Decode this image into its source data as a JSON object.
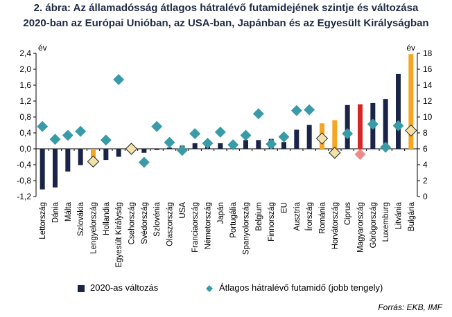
{
  "title_line1": "2. ábra: Az államadósság átlagos hátralévő futamidejének szintje és változása",
  "title_line2": "2020-ban az Európai Unióban, az USA-ban, Japánban és az Egyesült Királyságban",
  "source": "Forrás: EKB, IMF",
  "colors": {
    "bar_default": "#1a2448",
    "bar_highlight": "#f5a623",
    "bar_hungary": "#d62728",
    "diamond_default": "#3a9ba8",
    "diamond_highlight": "#f2e2a8",
    "diamond_hungary": "#ef8a8a"
  },
  "legend": {
    "bars_label": "2020-as változás",
    "diamonds_label": "Átlagos hátralévő futamidő (jobb tengely)"
  },
  "chart_data": {
    "type": "bar",
    "left_axis": {
      "unit": "év",
      "min": -1.2,
      "max": 2.4,
      "ticks": [
        "-1,2",
        "-0,8",
        "-0,4",
        "0,0",
        "0,4",
        "0,8",
        "1,2",
        "1,6",
        "2,0",
        "2,4"
      ]
    },
    "right_axis": {
      "unit": "év",
      "min": 0,
      "max": 18,
      "ticks": [
        "0",
        "2",
        "4",
        "6",
        "8",
        "10",
        "12",
        "14",
        "16",
        "18"
      ]
    },
    "grid": false,
    "legend_position": "bottom",
    "categories": [
      "Lettország",
      "Dánia",
      "Málta",
      "Szlovákia",
      "Lengyelország",
      "Hollandia",
      "Egyesült Királyság",
      "Csehország",
      "Svédország",
      "Szlovénia",
      "Olaszország",
      "USA",
      "Franciaország",
      "Németország",
      "Japán",
      "Portugália",
      "Spanyolország",
      "Belgium",
      "Finnország",
      "EU",
      "Ausztria",
      "Írország",
      "Románia",
      "Horvátország",
      "Ciprus",
      "Magyarország",
      "Görögország",
      "Luxemburg",
      "Litvánia",
      "Bulgária"
    ],
    "series": [
      {
        "name": "2020-as változás",
        "axis": "left",
        "values": [
          -1.02,
          -0.97,
          -0.57,
          -0.41,
          -0.28,
          -0.28,
          -0.2,
          -0.02,
          -0.1,
          -0.03,
          0.03,
          0.08,
          0.14,
          0.12,
          0.14,
          0.03,
          0.22,
          0.22,
          0.25,
          0.17,
          0.48,
          0.6,
          0.64,
          0.72,
          1.1,
          1.12,
          1.15,
          1.25,
          1.88,
          2.38
        ]
      },
      {
        "name": "Átlagos hátralévő futamidő (jobb tengely)",
        "axis": "right",
        "values": [
          8.8,
          7.2,
          7.7,
          8.2,
          4.4,
          7.1,
          14.7,
          6.0,
          4.3,
          8.8,
          6.8,
          5.8,
          7.9,
          6.7,
          8.1,
          6.5,
          7.7,
          10.4,
          6.6,
          7.5,
          10.8,
          10.9,
          7.3,
          5.5,
          7.9,
          5.3,
          9.1,
          6.2,
          8.9,
          8.3
        ]
      }
    ],
    "highlight_categories": [
      "Lengyelország",
      "Csehország",
      "Románia",
      "Horvátország",
      "Bulgária"
    ],
    "hungary_category": "Magyarország"
  }
}
